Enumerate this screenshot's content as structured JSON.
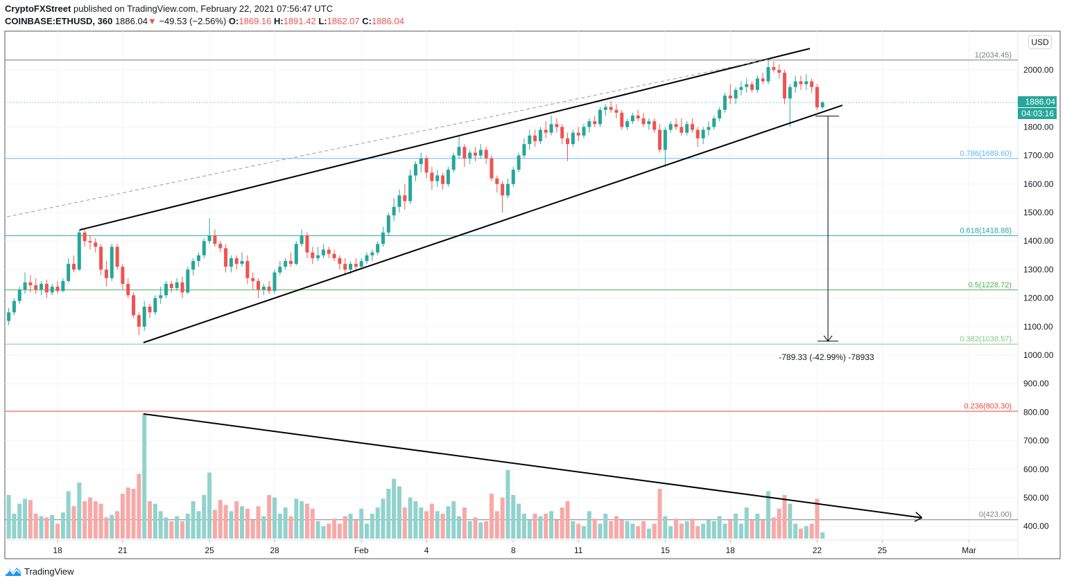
{
  "header": {
    "author": "CryptoFXStreet",
    "published": "published on TradingView.com, February 22, 2021 07:56:47 UTC",
    "symbol": "COINBASE:ETHUSD, 360",
    "last": "1886.04",
    "change": "−49.53 (−2.56%)",
    "o_label": "O:",
    "o": "1869.16",
    "h_label": "H:",
    "h": "1891.42",
    "l_label": "L:",
    "l": "1862.07",
    "c_label": "C:",
    "c": "1886.04"
  },
  "currency_button": "USD",
  "last_price_label": "1886.04",
  "countdown": "04:03:16",
  "measure_label": "-789.33 (-42.99%) -78933",
  "brand": "TradingView",
  "colors": {
    "up": "#26a69a",
    "down": "#ef5350",
    "up_volume": "#92d2cc",
    "down_volume": "#f7a9a7"
  },
  "chart_data": {
    "type": "candlestick",
    "interval": "6h",
    "first_candle": "2021-01-15 18:00",
    "candle_fields": [
      "open",
      "high",
      "low",
      "close",
      "volume_relative"
    ],
    "candles": [
      [
        1120,
        1165,
        1105,
        1150,
        35
      ],
      [
        1150,
        1200,
        1140,
        1190,
        20
      ],
      [
        1190,
        1240,
        1180,
        1230,
        28
      ],
      [
        1230,
        1290,
        1215,
        1255,
        32
      ],
      [
        1255,
        1280,
        1220,
        1245,
        31
      ],
      [
        1245,
        1270,
        1215,
        1230,
        20
      ],
      [
        1230,
        1260,
        1210,
        1250,
        18
      ],
      [
        1250,
        1265,
        1200,
        1220,
        17
      ],
      [
        1220,
        1250,
        1210,
        1240,
        19
      ],
      [
        1240,
        1260,
        1215,
        1225,
        12
      ],
      [
        1225,
        1270,
        1220,
        1260,
        21
      ],
      [
        1260,
        1340,
        1255,
        1320,
        38
      ],
      [
        1320,
        1350,
        1290,
        1300,
        26
      ],
      [
        1300,
        1440,
        1295,
        1430,
        45
      ],
      [
        1430,
        1440,
        1380,
        1400,
        30
      ],
      [
        1400,
        1420,
        1370,
        1395,
        33
      ],
      [
        1395,
        1410,
        1360,
        1380,
        30
      ],
      [
        1380,
        1390,
        1280,
        1300,
        28
      ],
      [
        1300,
        1330,
        1240,
        1270,
        17
      ],
      [
        1270,
        1390,
        1260,
        1380,
        19
      ],
      [
        1380,
        1390,
        1300,
        1310,
        22
      ],
      [
        1310,
        1320,
        1230,
        1250,
        36
      ],
      [
        1250,
        1270,
        1200,
        1210,
        41
      ],
      [
        1210,
        1220,
        1130,
        1140,
        40
      ],
      [
        1140,
        1150,
        1070,
        1100,
        52
      ],
      [
        1100,
        1190,
        1085,
        1170,
        100
      ],
      [
        1170,
        1180,
        1130,
        1150,
        30
      ],
      [
        1150,
        1210,
        1140,
        1200,
        28
      ],
      [
        1200,
        1240,
        1180,
        1210,
        22
      ],
      [
        1210,
        1260,
        1200,
        1250,
        17
      ],
      [
        1250,
        1260,
        1220,
        1235,
        14
      ],
      [
        1235,
        1270,
        1225,
        1255,
        18
      ],
      [
        1255,
        1275,
        1200,
        1220,
        14
      ],
      [
        1220,
        1310,
        1215,
        1300,
        20
      ],
      [
        1300,
        1340,
        1280,
        1330,
        30
      ],
      [
        1330,
        1360,
        1310,
        1350,
        22
      ],
      [
        1350,
        1410,
        1340,
        1400,
        35
      ],
      [
        1400,
        1480,
        1390,
        1420,
        53
      ],
      [
        1420,
        1440,
        1380,
        1390,
        23
      ],
      [
        1390,
        1400,
        1360,
        1375,
        31
      ],
      [
        1375,
        1390,
        1290,
        1310,
        27
      ],
      [
        1310,
        1350,
        1290,
        1340,
        22
      ],
      [
        1340,
        1350,
        1300,
        1320,
        30
      ],
      [
        1320,
        1360,
        1310,
        1330,
        26
      ],
      [
        1330,
        1350,
        1250,
        1270,
        24
      ],
      [
        1270,
        1290,
        1230,
        1260,
        15
      ],
      [
        1260,
        1270,
        1200,
        1230,
        26
      ],
      [
        1230,
        1250,
        1210,
        1240,
        18
      ],
      [
        1240,
        1260,
        1215,
        1225,
        35
      ],
      [
        1225,
        1300,
        1215,
        1290,
        33
      ],
      [
        1290,
        1330,
        1280,
        1310,
        20
      ],
      [
        1310,
        1340,
        1300,
        1330,
        25
      ],
      [
        1330,
        1360,
        1310,
        1320,
        18
      ],
      [
        1320,
        1400,
        1315,
        1390,
        32
      ],
      [
        1390,
        1440,
        1380,
        1420,
        30
      ],
      [
        1420,
        1430,
        1340,
        1360,
        28
      ],
      [
        1360,
        1380,
        1320,
        1340,
        24
      ],
      [
        1340,
        1380,
        1330,
        1350,
        14
      ],
      [
        1350,
        1390,
        1340,
        1370,
        10
      ],
      [
        1370,
        1380,
        1340,
        1355,
        12
      ],
      [
        1355,
        1370,
        1330,
        1340,
        16
      ],
      [
        1340,
        1350,
        1300,
        1320,
        12
      ],
      [
        1320,
        1340,
        1280,
        1300,
        18
      ],
      [
        1300,
        1330,
        1285,
        1320,
        20
      ],
      [
        1320,
        1340,
        1300,
        1310,
        15
      ],
      [
        1310,
        1340,
        1300,
        1330,
        24
      ],
      [
        1330,
        1360,
        1320,
        1350,
        12
      ],
      [
        1350,
        1370,
        1330,
        1360,
        20
      ],
      [
        1360,
        1400,
        1350,
        1390,
        25
      ],
      [
        1390,
        1450,
        1380,
        1430,
        32
      ],
      [
        1430,
        1500,
        1420,
        1490,
        40
      ],
      [
        1490,
        1550,
        1470,
        1520,
        48
      ],
      [
        1520,
        1580,
        1500,
        1560,
        42
      ],
      [
        1560,
        1600,
        1510,
        1540,
        25
      ],
      [
        1540,
        1650,
        1530,
        1630,
        33
      ],
      [
        1630,
        1680,
        1610,
        1670,
        30
      ],
      [
        1670,
        1710,
        1640,
        1690,
        25
      ],
      [
        1690,
        1700,
        1620,
        1640,
        22
      ],
      [
        1640,
        1660,
        1580,
        1610,
        28
      ],
      [
        1610,
        1650,
        1590,
        1630,
        22
      ],
      [
        1630,
        1640,
        1580,
        1600,
        20
      ],
      [
        1600,
        1660,
        1590,
        1650,
        26
      ],
      [
        1650,
        1710,
        1640,
        1700,
        30
      ],
      [
        1700,
        1770,
        1690,
        1730,
        18
      ],
      [
        1730,
        1740,
        1660,
        1690,
        25
      ],
      [
        1690,
        1720,
        1670,
        1710,
        14
      ],
      [
        1710,
        1730,
        1680,
        1700,
        17
      ],
      [
        1700,
        1740,
        1690,
        1720,
        13
      ],
      [
        1720,
        1730,
        1670,
        1690,
        14
      ],
      [
        1690,
        1700,
        1610,
        1620,
        36
      ],
      [
        1620,
        1630,
        1570,
        1600,
        22
      ],
      [
        1600,
        1610,
        1500,
        1560,
        33
      ],
      [
        1560,
        1620,
        1550,
        1600,
        55
      ],
      [
        1600,
        1660,
        1590,
        1650,
        35
      ],
      [
        1650,
        1710,
        1640,
        1700,
        28
      ],
      [
        1700,
        1760,
        1690,
        1740,
        20
      ],
      [
        1740,
        1790,
        1720,
        1770,
        15
      ],
      [
        1770,
        1790,
        1730,
        1750,
        20
      ],
      [
        1750,
        1800,
        1740,
        1790,
        18
      ],
      [
        1790,
        1820,
        1760,
        1780,
        20
      ],
      [
        1780,
        1840,
        1770,
        1810,
        22
      ],
      [
        1810,
        1830,
        1780,
        1800,
        15
      ],
      [
        1800,
        1810,
        1740,
        1760,
        25
      ],
      [
        1760,
        1780,
        1680,
        1740,
        30
      ],
      [
        1740,
        1790,
        1730,
        1780,
        14
      ],
      [
        1780,
        1800,
        1750,
        1770,
        12
      ],
      [
        1770,
        1810,
        1760,
        1800,
        10
      ],
      [
        1800,
        1830,
        1780,
        1820,
        22
      ],
      [
        1820,
        1840,
        1800,
        1810,
        16
      ],
      [
        1810,
        1870,
        1800,
        1860,
        12
      ],
      [
        1860,
        1880,
        1840,
        1870,
        20
      ],
      [
        1870,
        1890,
        1850,
        1860,
        14
      ],
      [
        1860,
        1880,
        1830,
        1850,
        18
      ],
      [
        1850,
        1860,
        1790,
        1800,
        15
      ],
      [
        1800,
        1830,
        1790,
        1820,
        14
      ],
      [
        1820,
        1850,
        1810,
        1840,
        12
      ],
      [
        1840,
        1860,
        1820,
        1830,
        10
      ],
      [
        1830,
        1850,
        1800,
        1810,
        14
      ],
      [
        1810,
        1830,
        1790,
        1820,
        8
      ],
      [
        1820,
        1830,
        1780,
        1790,
        12
      ],
      [
        1790,
        1810,
        1710,
        1720,
        40
      ],
      [
        1720,
        1800,
        1660,
        1790,
        18
      ],
      [
        1790,
        1820,
        1780,
        1810,
        10
      ],
      [
        1810,
        1830,
        1790,
        1800,
        16
      ],
      [
        1800,
        1830,
        1770,
        1780,
        12
      ],
      [
        1780,
        1820,
        1770,
        1810,
        14
      ],
      [
        1810,
        1830,
        1780,
        1790,
        16
      ],
      [
        1790,
        1800,
        1730,
        1760,
        10
      ],
      [
        1760,
        1800,
        1740,
        1790,
        12
      ],
      [
        1790,
        1820,
        1770,
        1800,
        15
      ],
      [
        1800,
        1840,
        1790,
        1830,
        14
      ],
      [
        1830,
        1870,
        1820,
        1860,
        18
      ],
      [
        1860,
        1920,
        1850,
        1910,
        12
      ],
      [
        1910,
        1950,
        1880,
        1900,
        15
      ],
      [
        1900,
        1940,
        1880,
        1930,
        20
      ],
      [
        1930,
        1960,
        1910,
        1940,
        12
      ],
      [
        1940,
        1970,
        1920,
        1950,
        25
      ],
      [
        1950,
        1960,
        1920,
        1930,
        15
      ],
      [
        1930,
        1980,
        1920,
        1970,
        20
      ],
      [
        1970,
        1990,
        1950,
        1960,
        15
      ],
      [
        1960,
        2040,
        1950,
        2010,
        38
      ],
      [
        2010,
        2030,
        1990,
        2000,
        17
      ],
      [
        2000,
        2020,
        1970,
        1990,
        24
      ],
      [
        1990,
        2000,
        1880,
        1900,
        35
      ],
      [
        1900,
        1950,
        1800,
        1940,
        28
      ],
      [
        1940,
        1980,
        1920,
        1960,
        12
      ],
      [
        1960,
        1980,
        1930,
        1950,
        8
      ],
      [
        1950,
        1985,
        1930,
        1960,
        10
      ],
      [
        1960,
        1970,
        1920,
        1940,
        12
      ],
      [
        1940,
        1950,
        1860,
        1869,
        32
      ],
      [
        1869.16,
        1891.42,
        1862.07,
        1886.04,
        5
      ]
    ],
    "price_ticks": [
      "400.00",
      "500.00",
      "600.00",
      "700.00",
      "800.00",
      "900.00",
      "1000.00",
      "1100.00",
      "1200.00",
      "1300.00",
      "1400.00",
      "1500.00",
      "1600.00",
      "1700.00",
      "1800.00",
      "2000.00"
    ],
    "date_ticks": [
      {
        "label": "18",
        "date": "2021-01-18"
      },
      {
        "label": "21",
        "date": "2021-01-21"
      },
      {
        "label": "25",
        "date": "2021-01-25"
      },
      {
        "label": "28",
        "date": "2021-01-28"
      },
      {
        "label": "Feb",
        "date": "2021-02-01"
      },
      {
        "label": "4",
        "date": "2021-02-04"
      },
      {
        "label": "8",
        "date": "2021-02-08"
      },
      {
        "label": "11",
        "date": "2021-02-11"
      },
      {
        "label": "15",
        "date": "2021-02-15"
      },
      {
        "label": "18",
        "date": "2021-02-18"
      },
      {
        "label": "22",
        "date": "2021-02-22"
      },
      {
        "label": "25",
        "date": "2021-02-25"
      },
      {
        "label": "Mar",
        "date": "2021-03-01"
      }
    ],
    "fib_levels": [
      {
        "label": "1(2034.45)",
        "price": 2034.45,
        "color": "#787b86"
      },
      {
        "label": "0.786(1689.60)",
        "price": 1689.6,
        "color": "#64b5f6"
      },
      {
        "label": "0.618(1418.88)",
        "price": 1418.88,
        "color": "#26a69a"
      },
      {
        "label": "0.5(1228.72)",
        "price": 1228.72,
        "color": "#4caf50"
      },
      {
        "label": "0.382(1038.57)",
        "price": 1038.57,
        "color": "#81c784"
      },
      {
        "label": "0.236(803.30)",
        "price": 803.3,
        "color": "#f44336"
      },
      {
        "label": "0(423.00)",
        "price": 423.0,
        "color": "#787b86"
      }
    ],
    "trend_lines": [
      {
        "name": "upper-channel-line",
        "from": [
          "2021-01-19 00:30",
          1439
        ],
        "to": [
          "2021-02-21 16:00",
          2075
        ],
        "style": "solid"
      },
      {
        "name": "lower-channel-line",
        "from": [
          "2021-01-21 23:00",
          1044
        ],
        "to": [
          "2021-02-23 04:00",
          1876
        ],
        "style": "solid"
      },
      {
        "name": "dashed-extension-line",
        "from": [
          "2021-01-15 16:00",
          1485
        ],
        "to": [
          "2021-02-19 21:00",
          2039
        ],
        "style": "dashed"
      },
      {
        "name": "volume-trend-arrow",
        "from": [
          "2021-01-21 23:00",
          794
        ],
        "to": [
          "2021-02-26 20:00",
          430
        ],
        "style": "arrow"
      }
    ],
    "measure": {
      "date": "2021-02-22 12:00",
      "from": 1838,
      "to": 1049
    }
  }
}
